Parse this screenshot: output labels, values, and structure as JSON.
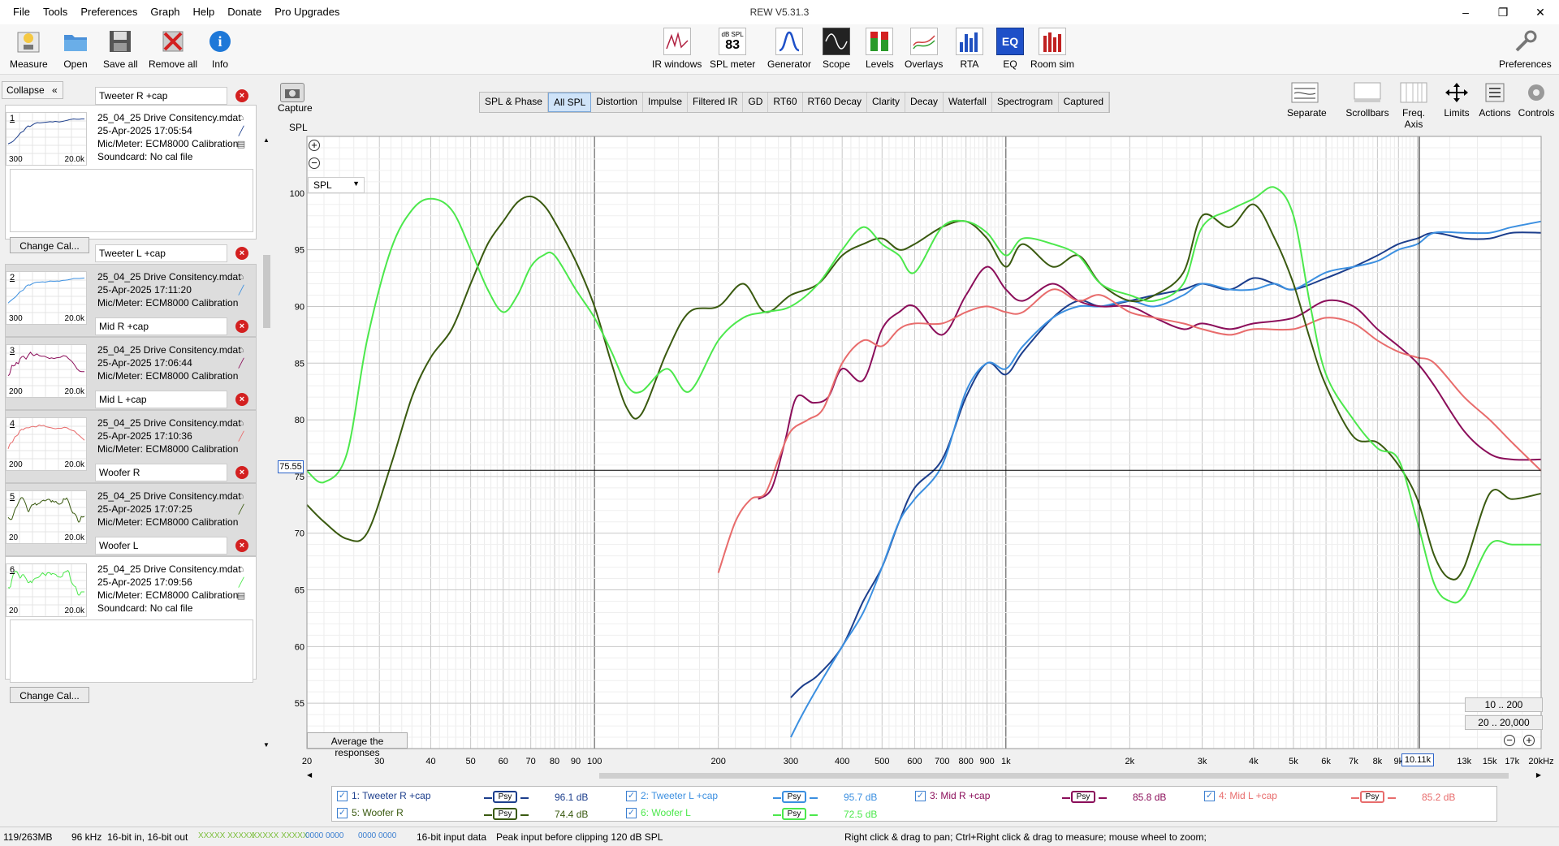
{
  "window": {
    "title": "REW V5.31.3",
    "min": "–",
    "max": "❐",
    "close": "✕"
  },
  "menu": [
    "File",
    "Tools",
    "Preferences",
    "Graph",
    "Help",
    "Donate",
    "Pro Upgrades"
  ],
  "toolbar": {
    "left": [
      {
        "label": "Measure",
        "icon": "microphone-icon"
      },
      {
        "label": "Open",
        "icon": "folder-icon"
      },
      {
        "label": "Save all",
        "icon": "save-icon"
      },
      {
        "label": "Remove all",
        "icon": "remove-icon"
      },
      {
        "label": "Info",
        "icon": "info-icon"
      }
    ],
    "center": [
      {
        "label": "IR windows",
        "icon": "ir-windows-icon"
      },
      {
        "label": "SPL meter",
        "icon": "spl-meter-icon",
        "top": "dB SPL",
        "value": "83"
      },
      {
        "label": "Generator",
        "icon": "generator-icon"
      },
      {
        "label": "Scope",
        "icon": "scope-icon"
      },
      {
        "label": "Levels",
        "icon": "levels-icon"
      },
      {
        "label": "Overlays",
        "icon": "overlays-icon"
      },
      {
        "label": "RTA",
        "icon": "rta-icon"
      },
      {
        "label": "EQ",
        "icon": "eq-icon",
        "glyph": "EQ"
      },
      {
        "label": "Room sim",
        "icon": "room-sim-icon"
      }
    ],
    "right": {
      "label": "Preferences",
      "icon": "wrench-icon"
    }
  },
  "sidebar": {
    "collapse": "Collapse",
    "collapse_glyph": "«",
    "change_cal": "Change Cal...",
    "measurements": [
      {
        "num": "1",
        "name": "Tweeter R +cap",
        "file": "25_04_25 Drive Consitency.mdat",
        "date": "25-Apr-2025 17:05:54",
        "mic": "Mic/Meter: ECM8000 Calibration",
        "sound": "Soundcard: No cal file",
        "lo": "300",
        "hi": "20.0k",
        "color": "#1c3e8c"
      },
      {
        "num": "2",
        "name": "Tweeter L +cap",
        "file": "25_04_25 Drive Consitency.mdat",
        "date": "25-Apr-2025 17:11:20",
        "mic": "Mic/Meter: ECM8000 Calibration",
        "lo": "300",
        "hi": "20.0k",
        "color": "#3b8fe0"
      },
      {
        "num": "3",
        "name": "Mid R +cap",
        "file": "25_04_25 Drive Consitency.mdat",
        "date": "25-Apr-2025 17:06:44",
        "mic": "Mic/Meter: ECM8000 Calibration",
        "lo": "200",
        "hi": "20.0k",
        "color": "#8b0e5a"
      },
      {
        "num": "4",
        "name": "Mid L +cap",
        "file": "25_04_25 Drive Consitency.mdat",
        "date": "25-Apr-2025 17:10:36",
        "mic": "Mic/Meter: ECM8000 Calibration",
        "lo": "200",
        "hi": "20.0k",
        "color": "#e86c6c"
      },
      {
        "num": "5",
        "name": "Woofer R",
        "file": "25_04_25 Drive Consitency.mdat",
        "date": "25-Apr-2025 17:07:25",
        "mic": "Mic/Meter: ECM8000 Calibration",
        "lo": "20",
        "hi": "20.0k",
        "color": "#3a5a10"
      },
      {
        "num": "6",
        "name": "Woofer L",
        "file": "25_04_25 Drive Consitency.mdat",
        "date": "25-Apr-2025 17:09:56",
        "mic": "Mic/Meter: ECM8000 Calibration",
        "sound": "Soundcard: No cal file",
        "lo": "20",
        "hi": "20.0k",
        "color": "#4ce84c"
      }
    ]
  },
  "graph": {
    "capture": "Capture",
    "spl_label": "SPL",
    "dropdown": "SPL",
    "tabs": [
      "SPL & Phase",
      "All SPL",
      "Distortion",
      "Impulse",
      "Filtered IR",
      "GD",
      "RT60",
      "RT60 Decay",
      "Clarity",
      "Decay",
      "Waterfall",
      "Spectrogram",
      "Captured"
    ],
    "active_tab": "All SPL",
    "right_buttons": [
      {
        "label": "Separate",
        "icon": "separate-icon"
      },
      {
        "label": "Scrollbars",
        "icon": "scrollbars-icon"
      },
      {
        "label": "Freq. Axis",
        "icon": "freq-axis-icon"
      },
      {
        "label": "Limits",
        "icon": "limits-icon"
      },
      {
        "label": "Actions",
        "icon": "actions-icon"
      },
      {
        "label": "Controls",
        "icon": "controls-icon"
      }
    ],
    "average": "Average the responses",
    "cursor_spl": "75.55",
    "cursor_freq": "10.11k",
    "zoom_btn_1": "10 .. 200",
    "zoom_btn_2": "20 .. 20,000"
  },
  "chart_data": {
    "type": "line",
    "xlabel": "",
    "ylabel": "SPL",
    "x_scale": "log",
    "xlim": [
      20,
      20000
    ],
    "ylim": [
      51,
      105
    ],
    "x_ticks": [
      {
        "v": 20,
        "t": "20"
      },
      {
        "v": 30,
        "t": "30"
      },
      {
        "v": 40,
        "t": "40"
      },
      {
        "v": 50,
        "t": "50"
      },
      {
        "v": 60,
        "t": "60"
      },
      {
        "v": 70,
        "t": "70"
      },
      {
        "v": 80,
        "t": "80"
      },
      {
        "v": 90,
        "t": "90"
      },
      {
        "v": 100,
        "t": "100"
      },
      {
        "v": 200,
        "t": "200"
      },
      {
        "v": 300,
        "t": "300"
      },
      {
        "v": 400,
        "t": "400"
      },
      {
        "v": 500,
        "t": "500"
      },
      {
        "v": 600,
        "t": "600"
      },
      {
        "v": 700,
        "t": "700"
      },
      {
        "v": 800,
        "t": "800"
      },
      {
        "v": 900,
        "t": "900"
      },
      {
        "v": 1000,
        "t": "1k"
      },
      {
        "v": 2000,
        "t": "2k"
      },
      {
        "v": 3000,
        "t": "3k"
      },
      {
        "v": 4000,
        "t": "4k"
      },
      {
        "v": 5000,
        "t": "5k"
      },
      {
        "v": 6000,
        "t": "6k"
      },
      {
        "v": 7000,
        "t": "7k"
      },
      {
        "v": 8000,
        "t": "8k"
      },
      {
        "v": 9000,
        "t": "9k"
      },
      {
        "v": 13000,
        "t": "13k"
      },
      {
        "v": 15000,
        "t": "15k"
      },
      {
        "v": 17000,
        "t": "17k"
      },
      {
        "v": 20000,
        "t": "20kHz"
      }
    ],
    "y_ticks": [
      55,
      60,
      65,
      70,
      75,
      80,
      85,
      90,
      95,
      100
    ],
    "cursor": {
      "x": 10110,
      "y": 75.55
    },
    "series": [
      {
        "name": "1: Tweeter R +cap",
        "color": "#1c3e8c",
        "level": "96.1 dB",
        "x": [
          300,
          320,
          350,
          400,
          450,
          500,
          550,
          600,
          700,
          800,
          900,
          1000,
          1100,
          1300,
          1500,
          1700,
          2000,
          2300,
          2700,
          3000,
          3500,
          4000,
          4500,
          5000,
          6000,
          7000,
          8000,
          9000,
          10000,
          11000,
          13000,
          15000,
          17000,
          20000
        ],
        "y": [
          55.5,
          56.5,
          57.5,
          60,
          64,
          67,
          71,
          74,
          76.5,
          82,
          85,
          84,
          86,
          89,
          90.5,
          90,
          90.5,
          91,
          91.5,
          92,
          91.5,
          92.5,
          92,
          91.5,
          92.5,
          93.5,
          94.5,
          95.5,
          96,
          96.5,
          96,
          96,
          96.5,
          96.5
        ]
      },
      {
        "name": "2: Tweeter L +cap",
        "color": "#3b8fe0",
        "level": "95.7 dB",
        "x": [
          300,
          320,
          350,
          400,
          450,
          500,
          550,
          600,
          700,
          800,
          900,
          1000,
          1100,
          1300,
          1500,
          1700,
          2000,
          2300,
          2700,
          3000,
          3500,
          4000,
          4500,
          5000,
          6000,
          7000,
          8000,
          9000,
          10000,
          11000,
          13000,
          15000,
          17000,
          20000
        ],
        "y": [
          52,
          54,
          56.5,
          60,
          63,
          67,
          71,
          73,
          76,
          82.5,
          85,
          84.5,
          86.5,
          89,
          90,
          90,
          90.5,
          90,
          91,
          92,
          91.5,
          91.5,
          92,
          91.5,
          93,
          93.5,
          94,
          95,
          95.5,
          96.5,
          96.5,
          96.5,
          97,
          97.5
        ]
      },
      {
        "name": "3: Mid R +cap",
        "color": "#8b0e5a",
        "level": "85.8 dB",
        "x": [
          250,
          270,
          290,
          310,
          340,
          370,
          400,
          450,
          500,
          550,
          600,
          700,
          800,
          900,
          1000,
          1100,
          1300,
          1500,
          1700,
          2000,
          2300,
          2700,
          3000,
          3500,
          4000,
          5000,
          6000,
          7000,
          8000,
          9000,
          10000,
          11000,
          13000,
          15000,
          17000,
          20000
        ],
        "y": [
          73,
          74,
          78,
          82,
          81.5,
          82,
          84.5,
          83.5,
          88,
          89.5,
          90,
          87.5,
          91,
          93.5,
          91.5,
          90.5,
          92,
          90.5,
          90,
          90,
          89,
          88,
          88.5,
          88,
          88.5,
          89,
          90.5,
          90,
          88,
          86.5,
          85,
          83,
          79,
          77,
          76.5,
          76.5
        ]
      },
      {
        "name": "4: Mid L +cap",
        "color": "#e86c6c",
        "level": "85.2 dB",
        "x": [
          200,
          220,
          240,
          260,
          280,
          300,
          330,
          360,
          400,
          450,
          500,
          550,
          600,
          700,
          800,
          900,
          1000,
          1100,
          1300,
          1500,
          1700,
          2000,
          2300,
          2700,
          3000,
          3500,
          4000,
          5000,
          6000,
          7000,
          8000,
          9000,
          10000,
          11000,
          13000,
          15000,
          17000,
          20000
        ],
        "y": [
          66.5,
          71,
          73,
          73.5,
          76.5,
          79,
          80,
          81,
          85,
          87,
          86.5,
          88,
          88.5,
          88.5,
          89.5,
          90,
          89.5,
          89.5,
          91.5,
          90.5,
          91,
          89.5,
          89,
          88.5,
          88,
          87.5,
          88,
          88,
          89,
          88.5,
          87,
          86,
          85.5,
          85,
          82,
          80,
          78,
          75.5
        ]
      },
      {
        "name": "5: Woofer R",
        "color": "#3a5a10",
        "level": "74.4 dB",
        "x": [
          20,
          22,
          25,
          28,
          32,
          36,
          40,
          45,
          50,
          55,
          60,
          65,
          70,
          75,
          80,
          90,
          100,
          110,
          120,
          130,
          150,
          170,
          200,
          230,
          260,
          300,
          350,
          400,
          450,
          500,
          550,
          600,
          700,
          800,
          900,
          1000,
          1100,
          1300,
          1500,
          1700,
          2000,
          2300,
          2700,
          3000,
          3500,
          4000,
          4500,
          5000,
          5500,
          6000,
          7000,
          8000,
          9000,
          10000,
          11000,
          12000,
          13000,
          15000,
          17000,
          20000
        ],
        "y": [
          72.5,
          71,
          69.5,
          70,
          76,
          82,
          85.5,
          88,
          92,
          95.5,
          97.5,
          99.2,
          99.7,
          99,
          97.5,
          94,
          90,
          85,
          81,
          80.5,
          86,
          89.5,
          90,
          92,
          89.5,
          91,
          92,
          94.5,
          95.5,
          96,
          95,
          95.5,
          97,
          97.5,
          96,
          93.5,
          95.5,
          93.5,
          94.5,
          92,
          90.5,
          91,
          93,
          98,
          97,
          99,
          96,
          92,
          87,
          83,
          78.5,
          78,
          76,
          73,
          68,
          66,
          67,
          73.5,
          73,
          73.5
        ]
      },
      {
        "name": "6: Woofer L",
        "color": "#4ce84c",
        "level": "72.5 dB",
        "x": [
          20,
          22,
          25,
          28,
          32,
          36,
          40,
          45,
          50,
          55,
          60,
          65,
          70,
          75,
          80,
          90,
          100,
          110,
          120,
          130,
          150,
          170,
          200,
          230,
          260,
          300,
          350,
          400,
          450,
          500,
          550,
          600,
          700,
          800,
          900,
          1000,
          1100,
          1300,
          1500,
          1700,
          2000,
          2300,
          2700,
          3000,
          3500,
          4000,
          4500,
          5000,
          5500,
          6000,
          7000,
          8000,
          9000,
          10000,
          11000,
          12000,
          13000,
          15000,
          17000,
          20000
        ],
        "y": [
          75.5,
          74.5,
          77,
          87,
          95,
          98.5,
          99.5,
          98.5,
          95,
          91.5,
          89.5,
          91,
          93.5,
          94.5,
          94.5,
          91.5,
          89,
          86,
          83,
          82.5,
          84.5,
          82.5,
          87,
          89,
          89.5,
          90,
          92,
          95,
          97,
          95.5,
          94.5,
          93,
          97,
          97.5,
          96.5,
          94.5,
          96,
          95.5,
          94.5,
          92,
          91,
          90.5,
          92,
          97,
          98.5,
          99.5,
          100.5,
          98,
          90,
          84,
          80,
          77.5,
          76.5,
          71,
          65.5,
          64,
          64.5,
          69,
          69,
          69
        ]
      }
    ]
  },
  "legend": [
    {
      "label": "1: Tweeter R +cap",
      "level": "96.1 dB",
      "color": "#1c3e8c",
      "label_color": "#1c3e8c"
    },
    {
      "label": "2: Tweeter L +cap",
      "level": "95.7 dB",
      "color": "#3b8fe0",
      "label_color": "#3b8fe0"
    },
    {
      "label": "3: Mid R +cap",
      "level": "85.8 dB",
      "color": "#8b0e5a",
      "label_color": "#8b0e5a"
    },
    {
      "label": "4: Mid L +cap",
      "level": "85.2 dB",
      "color": "#e86c6c",
      "label_color": "#e86c6c"
    },
    {
      "label": "5: Woofer R",
      "level": "74.4 dB",
      "color": "#3a5a10",
      "label_color": "#3a5a10"
    },
    {
      "label": "6: Woofer L",
      "level": "72.5 dB",
      "color": "#4ce84c",
      "label_color": "#4ce84c"
    }
  ],
  "legend_psy": "Psy",
  "status": {
    "memory": "119/263MB",
    "rate": "96 kHz",
    "bits": "16-bit in, 16-bit out",
    "levels_a": "XXXXX XXXXX",
    "levels_b": "XXXXX XXXXX",
    "zeros_a": "0000 0000",
    "zeros_b": "0000 0000",
    "input": "16-bit input data",
    "peak": "Peak input before clipping 120 dB SPL",
    "hint": "Right click & drag to pan; Ctrl+Right click & drag to measure; mouse wheel to zoom;"
  }
}
